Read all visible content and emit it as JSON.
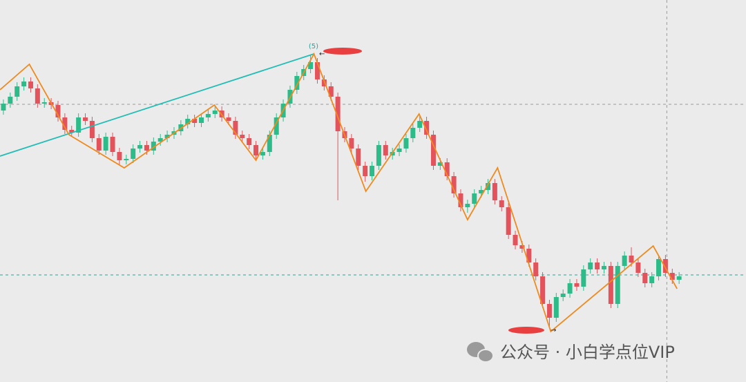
{
  "chart_data": {
    "type": "candlestick",
    "xlim": [
      -0.5,
      108.8
    ],
    "ylim": [
      0,
      553
    ],
    "up_color": "#2dbb8a",
    "down_color": "#e2535c",
    "open": [
      393,
      403,
      413,
      428,
      435,
      425,
      403,
      405,
      401,
      383,
      365,
      361,
      383,
      378,
      353,
      335,
      355,
      333,
      321,
      323,
      338,
      343,
      335,
      348,
      353,
      358,
      363,
      373,
      381,
      375,
      383,
      388,
      393,
      383,
      378,
      358,
      353,
      343,
      328,
      333,
      358,
      383,
      403,
      423,
      443,
      453,
      463,
      438,
      428,
      413,
      363,
      353,
      338,
      313,
      298,
      313,
      343,
      328,
      333,
      338,
      353,
      368,
      378,
      358,
      313,
      318,
      298,
      273,
      253,
      258,
      273,
      278,
      288,
      263,
      253,
      213,
      198,
      193,
      173,
      153,
      113,
      93,
      123,
      128,
      143,
      138,
      163,
      173,
      163,
      168,
      113,
      168,
      183,
      173,
      158,
      143,
      153,
      178,
      158,
      148
    ],
    "high": [
      409,
      419,
      434,
      441,
      441,
      431,
      411,
      411,
      407,
      389,
      371,
      389,
      389,
      384,
      359,
      361,
      361,
      339,
      329,
      344,
      349,
      349,
      354,
      359,
      364,
      369,
      379,
      387,
      387,
      389,
      394,
      401,
      399,
      389,
      384,
      364,
      359,
      349,
      339,
      364,
      389,
      409,
      429,
      449,
      459,
      473,
      469,
      444,
      434,
      419,
      369,
      359,
      344,
      319,
      319,
      349,
      349,
      339,
      344,
      359,
      374,
      386,
      384,
      364,
      324,
      324,
      304,
      279,
      264,
      279,
      284,
      294,
      294,
      269,
      259,
      219,
      204,
      199,
      179,
      159,
      119,
      129,
      134,
      149,
      149,
      169,
      179,
      179,
      174,
      174,
      174,
      189,
      195,
      179,
      164,
      159,
      184,
      184,
      164,
      159
    ],
    "low": [
      387,
      397,
      407,
      422,
      419,
      397,
      397,
      395,
      377,
      359,
      355,
      355,
      372,
      347,
      329,
      329,
      327,
      315,
      315,
      317,
      332,
      329,
      329,
      342,
      347,
      352,
      357,
      367,
      369,
      369,
      377,
      382,
      377,
      372,
      352,
      347,
      337,
      320,
      322,
      327,
      352,
      377,
      397,
      417,
      437,
      447,
      432,
      422,
      407,
      263,
      347,
      332,
      307,
      290,
      292,
      307,
      322,
      322,
      327,
      332,
      347,
      362,
      352,
      307,
      307,
      292,
      267,
      247,
      245,
      252,
      267,
      272,
      257,
      247,
      207,
      192,
      187,
      167,
      147,
      107,
      78,
      87,
      117,
      122,
      132,
      132,
      157,
      157,
      157,
      107,
      107,
      162,
      167,
      152,
      137,
      137,
      147,
      152,
      142,
      142
    ],
    "close": [
      403,
      413,
      428,
      435,
      425,
      403,
      405,
      401,
      383,
      365,
      361,
      383,
      378,
      353,
      335,
      355,
      333,
      321,
      323,
      338,
      343,
      335,
      348,
      353,
      358,
      363,
      373,
      381,
      375,
      383,
      388,
      393,
      383,
      378,
      358,
      353,
      343,
      328,
      333,
      358,
      383,
      403,
      423,
      443,
      453,
      463,
      438,
      428,
      413,
      363,
      353,
      338,
      313,
      298,
      313,
      343,
      328,
      333,
      338,
      353,
      368,
      378,
      358,
      313,
      318,
      298,
      273,
      253,
      258,
      273,
      278,
      288,
      263,
      253,
      213,
      198,
      193,
      173,
      153,
      113,
      93,
      123,
      128,
      143,
      138,
      163,
      173,
      163,
      168,
      113,
      168,
      183,
      173,
      158,
      143,
      153,
      178,
      158,
      148,
      153
    ],
    "zigzag": {
      "color": "#ef8a1f",
      "x": [
        -0.5,
        3.8,
        9.6,
        17.7,
        30.9,
        37,
        45.5,
        53.1,
        60.9,
        68,
        72.4,
        80.2,
        95.2,
        98.7
      ],
      "y": [
        423,
        460,
        358,
        310,
        401,
        321,
        475,
        276,
        388,
        235,
        310,
        73,
        197,
        135
      ]
    },
    "trendline": {
      "color": "#22bdb5",
      "x": [
        -0.5,
        45.5
      ],
      "y": [
        327,
        475
      ]
    },
    "hlines": [
      {
        "value": 402,
        "color": "#9a9a9a"
      },
      {
        "value": 155,
        "color": "#2aa58f"
      }
    ],
    "vline": 97.2,
    "wave_label": "(5)",
    "watermark": "公众号 · 小白学点位VIP"
  }
}
